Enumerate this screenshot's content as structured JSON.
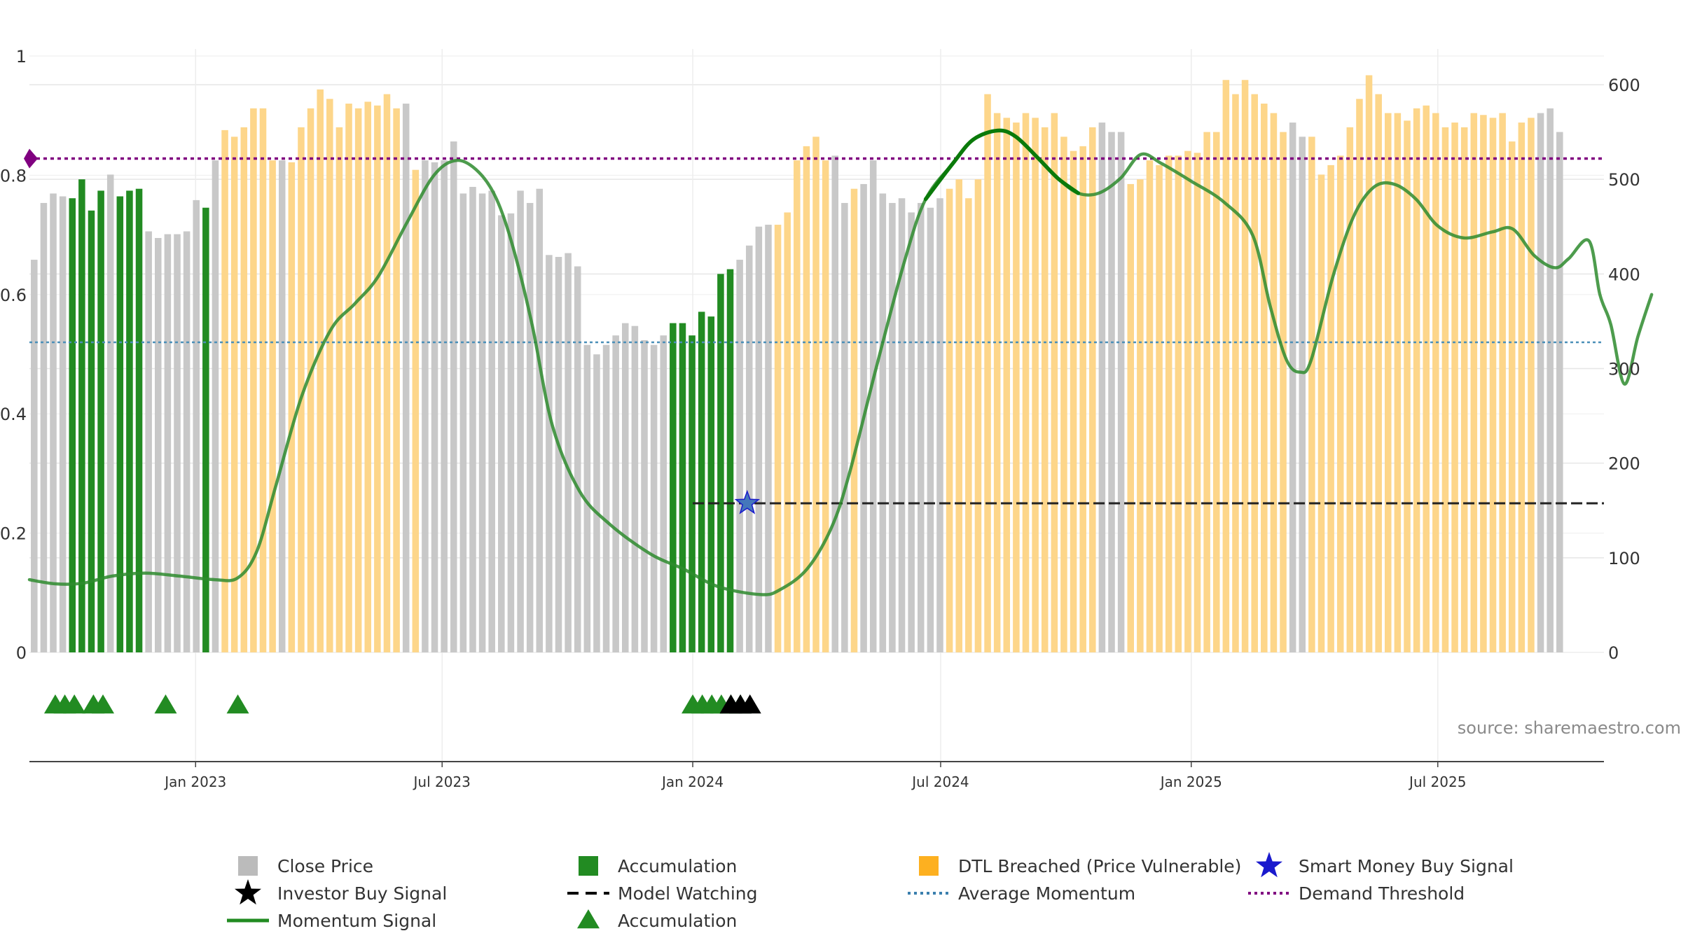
{
  "chart_data": {
    "type": "bar",
    "title": "",
    "source": "source: sharemaestro.com",
    "left_axis": {
      "ylim": [
        0,
        1
      ],
      "ticks": [
        "0",
        "0.2",
        "0.4",
        "0.6",
        "0.8",
        "1"
      ]
    },
    "right_axis": {
      "ylim": [
        0,
        600
      ],
      "ticks": [
        "0",
        "100",
        "200",
        "300",
        "400",
        "500",
        "600"
      ]
    },
    "x_axis": {
      "start": "2022-09-01",
      "end": "2025-10-31",
      "ticks": [
        {
          "date": "2023-01-01",
          "label": "Jan 2023"
        },
        {
          "date": "2023-07-01",
          "label": "Jul 2023"
        },
        {
          "date": "2024-01-01",
          "label": "Jan 2024"
        },
        {
          "date": "2024-07-01",
          "label": "Jul 2024"
        },
        {
          "date": "2025-01-01",
          "label": "Jan 2025"
        },
        {
          "date": "2025-07-01",
          "label": "Jul 2025"
        }
      ]
    },
    "grid": true,
    "legend_position": "bottom",
    "colors": {
      "close": "#c8c8c8",
      "accumulation": "#228b22",
      "dtl": "#fdd68a",
      "momentum": "#2e8b2e",
      "average": "#4a8fb8",
      "demand": "#800080",
      "watching": "#222222",
      "smart_money": "#1a1acd"
    },
    "bar_start": "2022-09-01",
    "bar_interval_days": 7,
    "bar_states": "GGGGAAAAGAAAGGGGGGAGDDDDDDGDDDDDDDDDDDDGDGGGGGGGGGGGGGGGGGGGGGGGGGGAAAAAAAGGGGDDDDDDGGDGGGGGGGGGDDDDDDDDDDDDDDDDGGGDDDDDDDDDDDDDDDDDGGDDDDDDDDDDDDDDDDDDDDDDDD",
    "close_prices": [
      415,
      475,
      485,
      482,
      480,
      500,
      467,
      488,
      505,
      482,
      488,
      490,
      445,
      438,
      442,
      442,
      445,
      478,
      470,
      520,
      552,
      545,
      555,
      575,
      575,
      520,
      520,
      518,
      555,
      575,
      595,
      585,
      555,
      580,
      575,
      582,
      578,
      590,
      575,
      580,
      510,
      520,
      518,
      520,
      540,
      485,
      492,
      485,
      488,
      462,
      464,
      488,
      475,
      490,
      420,
      418,
      422,
      408,
      325,
      315,
      325,
      335,
      348,
      345,
      330,
      325,
      335,
      348,
      348,
      335,
      360,
      355,
      400,
      405,
      415,
      430,
      450,
      452,
      452,
      465,
      520,
      535,
      545,
      520,
      525,
      475,
      490,
      495,
      520,
      485,
      475,
      480,
      465,
      475,
      470,
      480,
      490,
      500,
      480,
      500,
      590,
      570,
      565,
      560,
      570,
      565,
      555,
      570,
      545,
      530,
      535,
      555,
      560,
      550,
      550,
      495,
      500,
      520,
      515,
      525,
      525,
      530,
      528,
      550,
      550,
      605,
      590,
      605,
      590,
      580,
      570,
      550,
      560,
      545,
      545,
      505,
      515,
      525,
      555,
      585,
      610,
      590,
      570,
      570,
      562,
      575,
      578,
      570,
      555,
      560,
      555,
      570,
      568,
      565,
      570,
      540,
      560,
      565,
      570,
      575,
      550
    ],
    "momentum": {
      "points": [
        [
          "2022-09-01",
          0.122
        ],
        [
          "2022-09-20",
          0.115
        ],
        [
          "2022-10-10",
          0.116
        ],
        [
          "2022-11-01",
          0.128
        ],
        [
          "2022-11-25",
          0.133
        ],
        [
          "2022-12-20",
          0.128
        ],
        [
          "2023-01-15",
          0.122
        ],
        [
          "2023-02-01",
          0.125
        ],
        [
          "2023-02-15",
          0.17
        ],
        [
          "2023-03-01",
          0.28
        ],
        [
          "2023-03-20",
          0.43
        ],
        [
          "2023-04-10",
          0.54
        ],
        [
          "2023-04-28",
          0.585
        ],
        [
          "2023-05-15",
          0.63
        ],
        [
          "2023-06-05",
          0.72
        ],
        [
          "2023-06-25",
          0.8
        ],
        [
          "2023-07-12",
          0.825
        ],
        [
          "2023-07-28",
          0.805
        ],
        [
          "2023-08-10",
          0.76
        ],
        [
          "2023-08-22",
          0.68
        ],
        [
          "2023-09-05",
          0.55
        ],
        [
          "2023-09-20",
          0.38
        ],
        [
          "2023-10-10",
          0.27
        ],
        [
          "2023-11-01",
          0.215
        ],
        [
          "2023-12-01",
          0.165
        ],
        [
          "2023-12-25",
          0.14
        ],
        [
          "2024-01-20",
          0.11
        ],
        [
          "2024-02-20",
          0.097
        ],
        [
          "2024-03-05",
          0.105
        ],
        [
          "2024-03-25",
          0.14
        ],
        [
          "2024-04-12",
          0.21
        ],
        [
          "2024-04-25",
          0.3
        ],
        [
          "2024-05-15",
          0.48
        ],
        [
          "2024-06-05",
          0.66
        ],
        [
          "2024-06-20",
          0.76
        ],
        [
          "2024-07-10",
          0.82
        ],
        [
          "2024-07-25",
          0.86
        ],
        [
          "2024-08-12",
          0.875
        ],
        [
          "2024-08-25",
          0.865
        ],
        [
          "2024-09-10",
          0.83
        ],
        [
          "2024-09-25",
          0.795
        ],
        [
          "2024-10-10",
          0.77
        ],
        [
          "2024-10-25",
          0.77
        ],
        [
          "2024-11-10",
          0.795
        ],
        [
          "2024-11-25",
          0.835
        ],
        [
          "2024-12-10",
          0.82
        ],
        [
          "2025-01-01",
          0.79
        ],
        [
          "2025-01-25",
          0.755
        ],
        [
          "2025-02-15",
          0.7
        ],
        [
          "2025-02-28",
          0.58
        ],
        [
          "2025-03-12",
          0.49
        ],
        [
          "2025-03-22",
          0.47
        ],
        [
          "2025-03-30",
          0.49
        ],
        [
          "2025-04-15",
          0.63
        ],
        [
          "2025-04-30",
          0.73
        ],
        [
          "2025-05-15",
          0.78
        ],
        [
          "2025-05-30",
          0.785
        ],
        [
          "2025-06-15",
          0.76
        ],
        [
          "2025-07-01",
          0.715
        ],
        [
          "2025-07-20",
          0.695
        ],
        [
          "2025-08-10",
          0.705
        ],
        [
          "2025-08-25",
          0.71
        ],
        [
          "2025-09-10",
          0.665
        ],
        [
          "2025-09-25",
          0.645
        ],
        [
          "2025-10-05",
          0.66
        ],
        [
          "2025-10-20",
          0.69
        ],
        [
          "2025-10-28",
          0.6
        ],
        [
          "2025-11-05",
          0.55
        ],
        [
          "2025-11-15",
          0.45
        ],
        [
          "2025-11-25",
          0.53
        ],
        [
          "2025-12-05",
          0.6
        ]
      ],
      "bold_from": "2024-06-12",
      "bold_to": "2024-10-20"
    },
    "average_momentum": 0.52,
    "demand_threshold": 0.828,
    "model_watching": {
      "from": "2024-01-01",
      "to": "2025-10-31",
      "value": 0.25
    },
    "smart_money_buy": {
      "date": "2024-02-10",
      "value": 0.25
    },
    "accumulation_markers": [
      "2022-09-20",
      "2022-09-27",
      "2022-10-04",
      "2022-10-18",
      "2022-10-25",
      "2022-12-10",
      "2023-02-01",
      "2024-01-01",
      "2024-01-08",
      "2024-01-15",
      "2024-01-22",
      "2024-01-29",
      "2024-02-05"
    ],
    "investor_buy_markers": [
      "2024-01-29",
      "2024-02-05",
      "2024-02-12"
    ],
    "legend": [
      {
        "kind": "square",
        "color": "#bbbbbb",
        "label": "Close Price"
      },
      {
        "kind": "square",
        "color": "#228b22",
        "label": "Accumulation"
      },
      {
        "kind": "square",
        "color": "#fdb020",
        "label": "DTL Breached (Price Vulnerable)"
      },
      {
        "kind": "star",
        "color": "#1a1acd",
        "label": "Smart Money Buy Signal"
      },
      {
        "kind": "star",
        "color": "#000000",
        "label": "Investor Buy Signal"
      },
      {
        "kind": "dash",
        "color": "#000000",
        "label": "Model Watching"
      },
      {
        "kind": "dots",
        "color": "#3a7fae",
        "label": "Average Momentum"
      },
      {
        "kind": "dots",
        "color": "#800080",
        "label": "Demand Threshold"
      },
      {
        "kind": "line",
        "color": "#228b22",
        "label": "Momentum Signal"
      },
      {
        "kind": "triangle",
        "color": "#228b22",
        "label": "Accumulation"
      }
    ]
  }
}
